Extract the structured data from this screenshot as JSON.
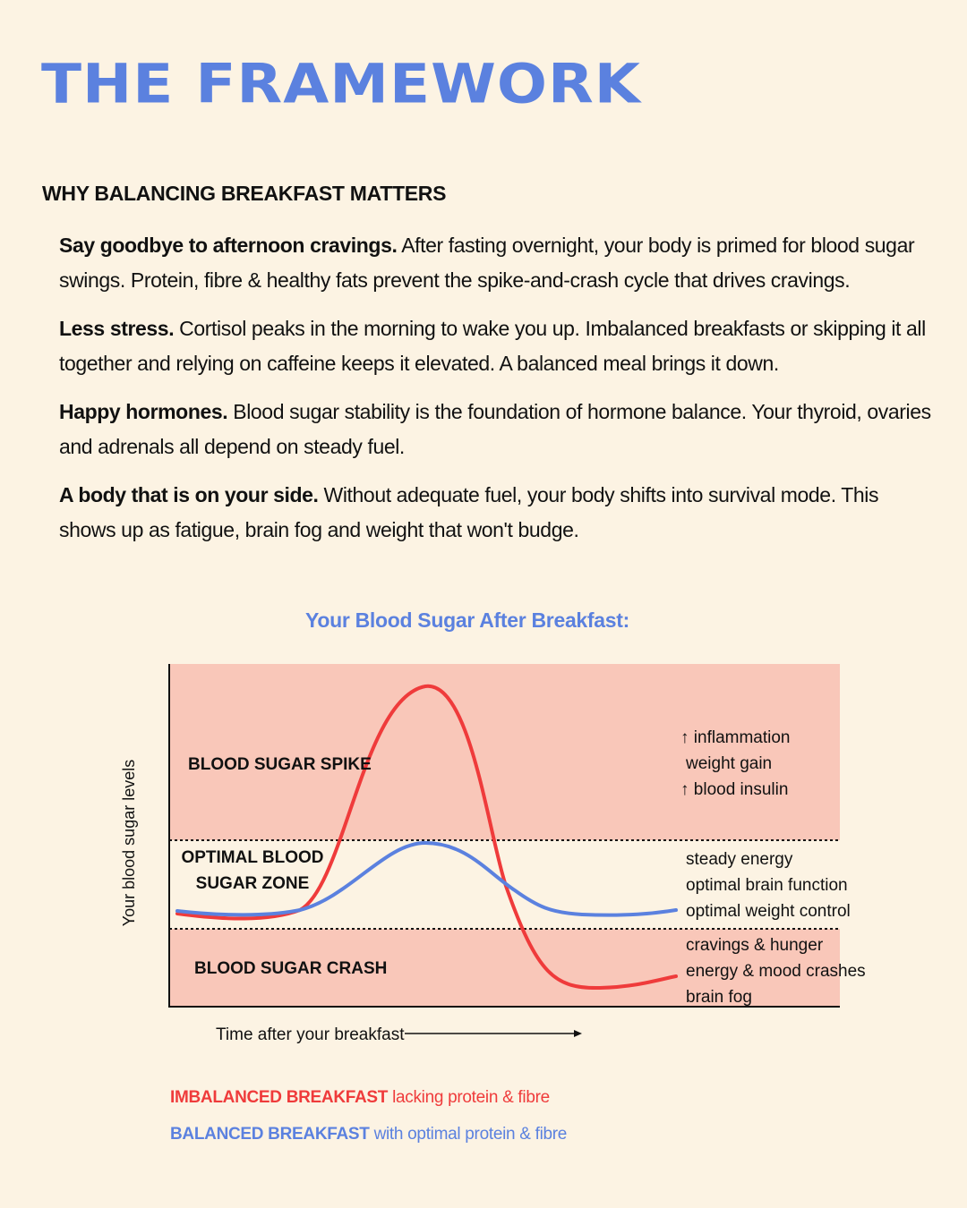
{
  "page": {
    "title": "THE FRAMEWORK",
    "subtitle": "WHY BALANCING BREAKFAST MATTERS"
  },
  "points": [
    {
      "heading": "Say goodbye to afternoon cravings.",
      "body": " After fasting overnight, your body is primed for blood sugar swings. Protein, fibre & healthy fats prevent the spike-and-crash cycle that drives cravings."
    },
    {
      "heading": "Less stress.",
      "body": " Cortisol peaks in the morning to wake you up. Imbalanced breakfasts or skipping it all together and relying on caffeine keeps it elevated. A balanced meal brings it down."
    },
    {
      "heading": "Happy hormones.",
      "body": " Blood sugar stability is the foundation of hormone balance. Your thyroid, ovaries and adrenals all depend on steady fuel."
    },
    {
      "heading": "A body that is on your side.",
      "body": " Without adequate fuel, your body shifts into survival mode. This shows up as fatigue, brain fog and weight that won't budge."
    }
  ],
  "chart": {
    "title": "Your Blood Sugar After Breakfast:",
    "ylabel": "Your blood sugar levels",
    "xlabel": "Time after your breakfast",
    "zones": {
      "spike": "BLOOD SUGAR SPIKE",
      "optimal_1": "OPTIMAL BLOOD",
      "optimal_2": "SUGAR ZONE",
      "crash": "BLOOD SUGAR CRASH"
    },
    "effects": {
      "spike": [
        "↑ inflammation",
        "weight gain",
        "↑ blood insulin"
      ],
      "optimal": [
        "steady energy",
        "optimal brain function",
        "optimal weight control"
      ],
      "crash": [
        "cravings & hunger",
        "energy & mood crashes",
        "brain fog"
      ]
    }
  },
  "legend": {
    "imbalanced_label": "IMBALANCED BREAKFAST",
    "imbalanced_desc": " lacking protein & fibre",
    "balanced_label": "BALANCED BREAKFAST",
    "balanced_desc": " with optimal protein & fibre"
  },
  "colors": {
    "background": "#fcf3e3",
    "accent_blue": "#5b81df",
    "accent_red": "#ef3b3b",
    "zone_pink": "#f9c7b9"
  }
}
